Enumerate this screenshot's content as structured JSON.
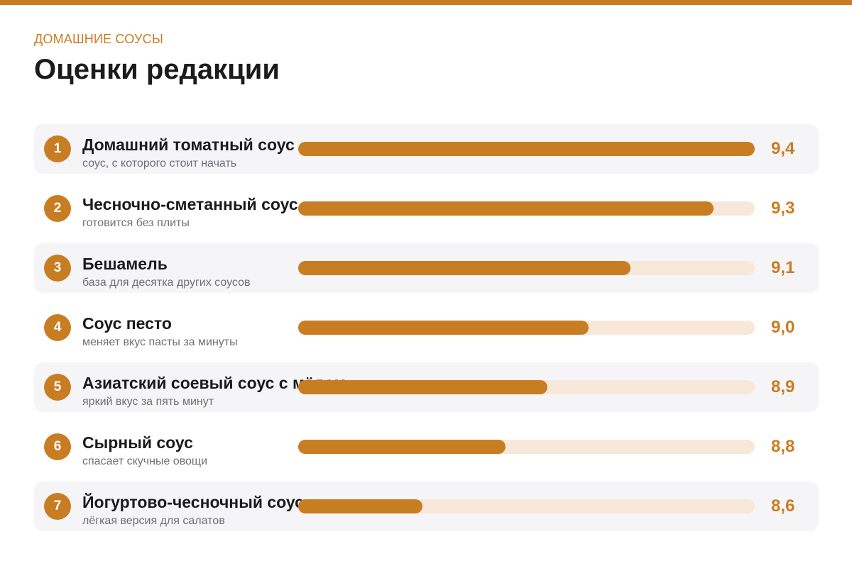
{
  "header": {
    "kicker": "ДОМАШНИЕ СОУСЫ",
    "title": "Оценки редакции"
  },
  "colors": {
    "accent": "#c97d22",
    "track": "#f7e8da",
    "row_shade": "#f5f5f7"
  },
  "chart_data": {
    "type": "bar",
    "orientation": "horizontal",
    "categories": [
      "Домашний томатный соус",
      "Чесночно-сметанный соус",
      "Бешамель",
      "Соус песто",
      "Азиатский соевый соус с мёдом",
      "Сырный соус",
      "Йогуртово-чесночный соус"
    ],
    "values": [
      9.4,
      9.3,
      9.1,
      9.0,
      8.9,
      8.8,
      8.6
    ],
    "axis_range": [
      8.3,
      9.4
    ],
    "items": [
      {
        "rank": "1",
        "name": "Домашний томатный соус",
        "subtitle": "соус, с которого стоит начать",
        "value": 9.4,
        "score_label": "9,4"
      },
      {
        "rank": "2",
        "name": "Чесночно-сметанный соус",
        "subtitle": "готовится без плиты",
        "value": 9.3,
        "score_label": "9,3"
      },
      {
        "rank": "3",
        "name": "Бешамель",
        "subtitle": "база для десятка других соусов",
        "value": 9.1,
        "score_label": "9,1"
      },
      {
        "rank": "4",
        "name": "Соус песто",
        "subtitle": "меняет вкус пасты за минуты",
        "value": 9.0,
        "score_label": "9,0"
      },
      {
        "rank": "5",
        "name": "Азиатский соевый соус с мёдом",
        "subtitle": "яркий вкус за пять минут",
        "value": 8.9,
        "score_label": "8,9"
      },
      {
        "rank": "6",
        "name": "Сырный соус",
        "subtitle": "спасает скучные овощи",
        "value": 8.8,
        "score_label": "8,8"
      },
      {
        "rank": "7",
        "name": "Йогуртово-чесночный соус",
        "subtitle": "лёгкая версия для салатов",
        "value": 8.6,
        "score_label": "8,6"
      }
    ]
  }
}
